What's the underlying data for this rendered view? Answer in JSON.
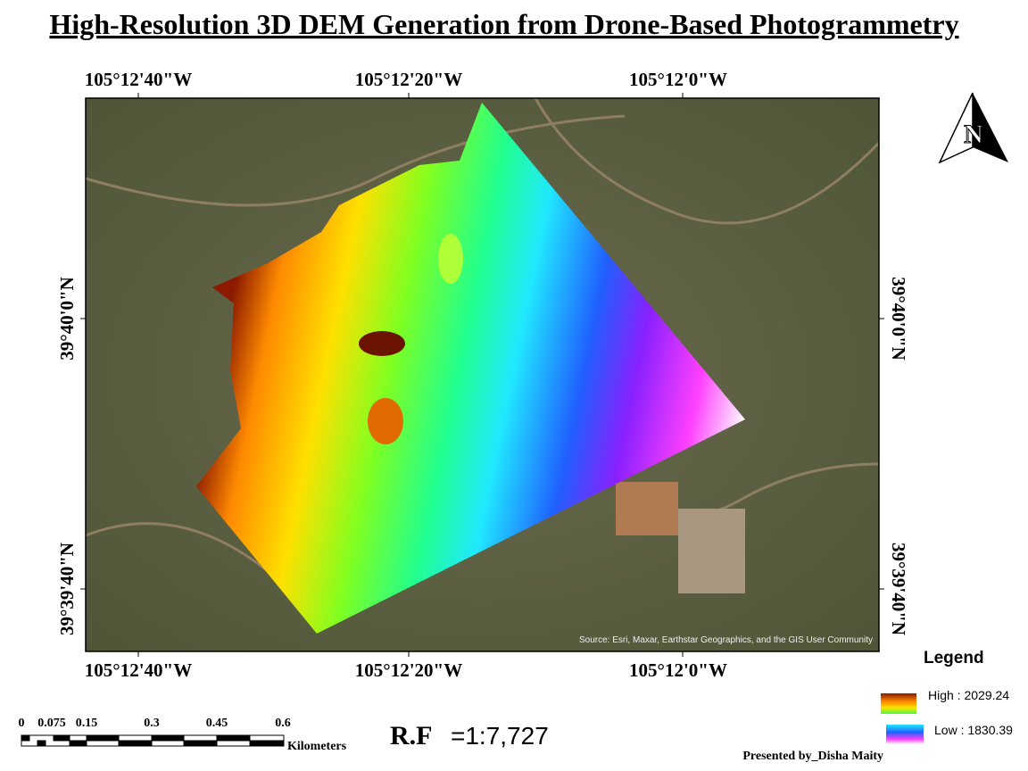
{
  "title": "High-Resolution 3D DEM Generation from Drone-Based Photogrammetry",
  "grid_labels": {
    "top": [
      "105°12'40\"W",
      "105°12'20\"W",
      "105°12'0\"W"
    ],
    "bottom": [
      "105°12'40\"W",
      "105°12'20\"W",
      "105°12'0\"W"
    ],
    "left": [
      "39°40'0\"N",
      "39°39'40\"N"
    ],
    "right": [
      "39°40'0\"N",
      "39°39'40\"N"
    ]
  },
  "attribution": "Source: Esri, Maxar, Earthstar Geographics, and the GIS User Community",
  "north_arrow": "N",
  "legend": {
    "title": "Legend",
    "high": "High : 2029.24",
    "low": "Low : 1830.39"
  },
  "scale_bar": {
    "ticks": [
      "0",
      "0.075",
      "0.15",
      "0.3",
      "0.45",
      "0.6"
    ],
    "unit": "Kilometers"
  },
  "rf": {
    "label": "R.F",
    "value": "=1:7,727"
  },
  "credit": "Presented by_Disha Maity"
}
